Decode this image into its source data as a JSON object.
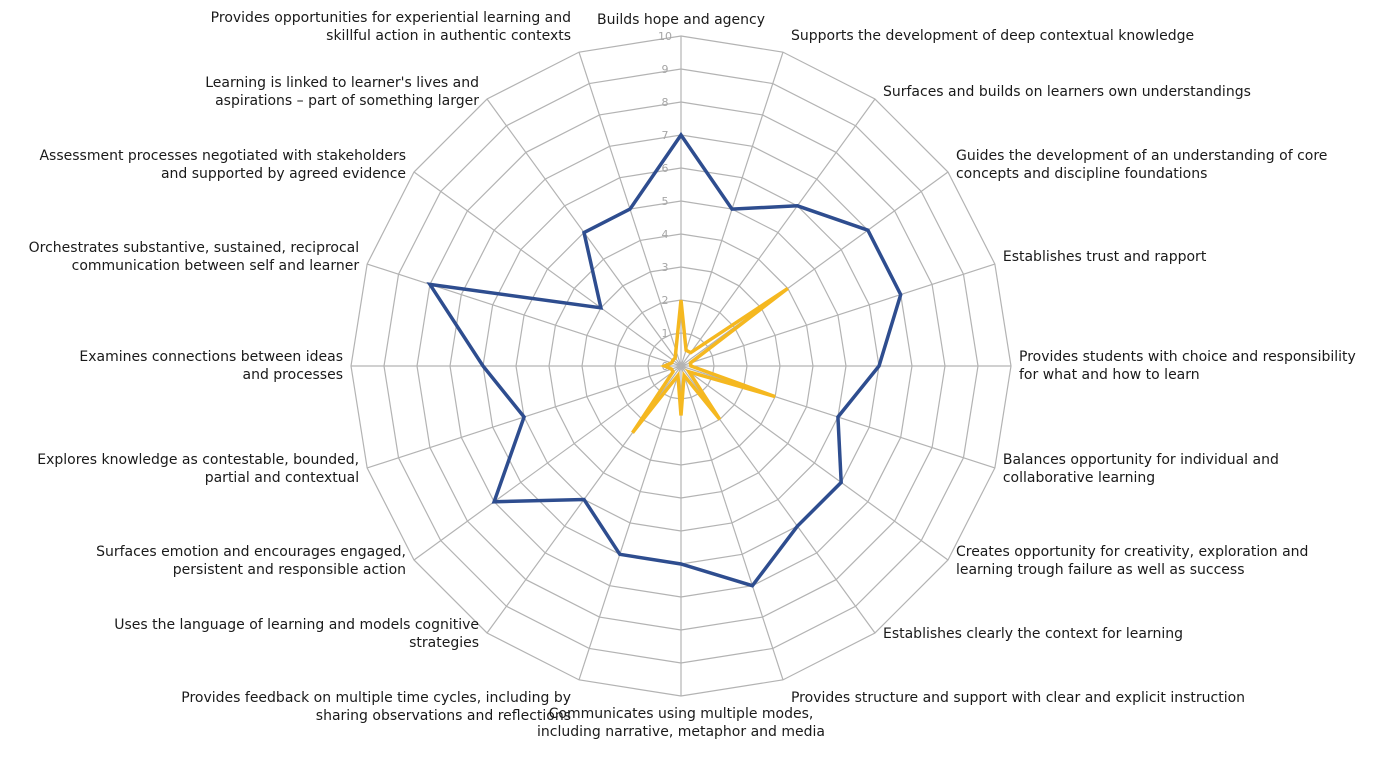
{
  "chart_data": {
    "type": "radar",
    "title": "",
    "rmin": 0,
    "rmax": 10,
    "ticks": [
      "0",
      "1",
      "2",
      "3",
      "4",
      "5",
      "6",
      "7",
      "8",
      "9",
      "10"
    ],
    "grid": true,
    "legend": "none",
    "categories": [
      [
        "Builds hope and agency"
      ],
      [
        "Supports the development of deep contextual knowledge"
      ],
      [
        "Surfaces and builds on learners own understandings"
      ],
      [
        "Guides the development of an understanding of core",
        "concepts and discipline foundations"
      ],
      [
        "Establishes trust and rapport"
      ],
      [
        "Provides students with choice and responsibility",
        "for what and how to learn"
      ],
      [
        "Balances opportunity for individual and",
        "collaborative learning"
      ],
      [
        "Creates opportunity for creativity, exploration and",
        "learning trough failure as well as success"
      ],
      [
        "Establishes clearly the context for learning"
      ],
      [
        "Provides structure and support with clear and explicit instruction"
      ],
      [
        "Communicates using multiple modes,",
        "including narrative, metaphor and media"
      ],
      [
        "Provides feedback on multiple time cycles, including by",
        "sharing observations and reflections"
      ],
      [
        "Uses the language of learning and models cognitive",
        "strategies"
      ],
      [
        "Surfaces emotion and encourages engaged,",
        "persistent and responsible action"
      ],
      [
        "Explores knowledge as contestable, bounded,",
        "partial and contextual"
      ],
      [
        "Examines connections between ideas",
        "and processes"
      ],
      [
        "Orchestrates substantive, sustained, reciprocal",
        "communication between self and learner"
      ],
      [
        "Assessment processes negotiated with stakeholders",
        "and supported by agreed evidence"
      ],
      [
        "Learning is linked to learner's lives and",
        "aspirations – part of something larger"
      ],
      [
        "Provides opportunities for experiential learning and",
        "skillful action in authentic contexts"
      ]
    ],
    "series": [
      {
        "color": "#2e4d8f",
        "values": [
          7,
          5,
          6,
          7,
          7,
          6,
          5,
          6,
          6,
          7,
          6,
          6,
          5,
          7,
          5,
          6,
          8,
          3,
          5,
          5
        ]
      },
      {
        "color": "#f5b820",
        "values": [
          2,
          0.5,
          0.5,
          4,
          0.3,
          0.3,
          3,
          0.3,
          2,
          0.3,
          1.5,
          0.3,
          2.5,
          0.3,
          0.3,
          0.5,
          0.3,
          0.3,
          0.3,
          0.5
        ]
      }
    ]
  }
}
